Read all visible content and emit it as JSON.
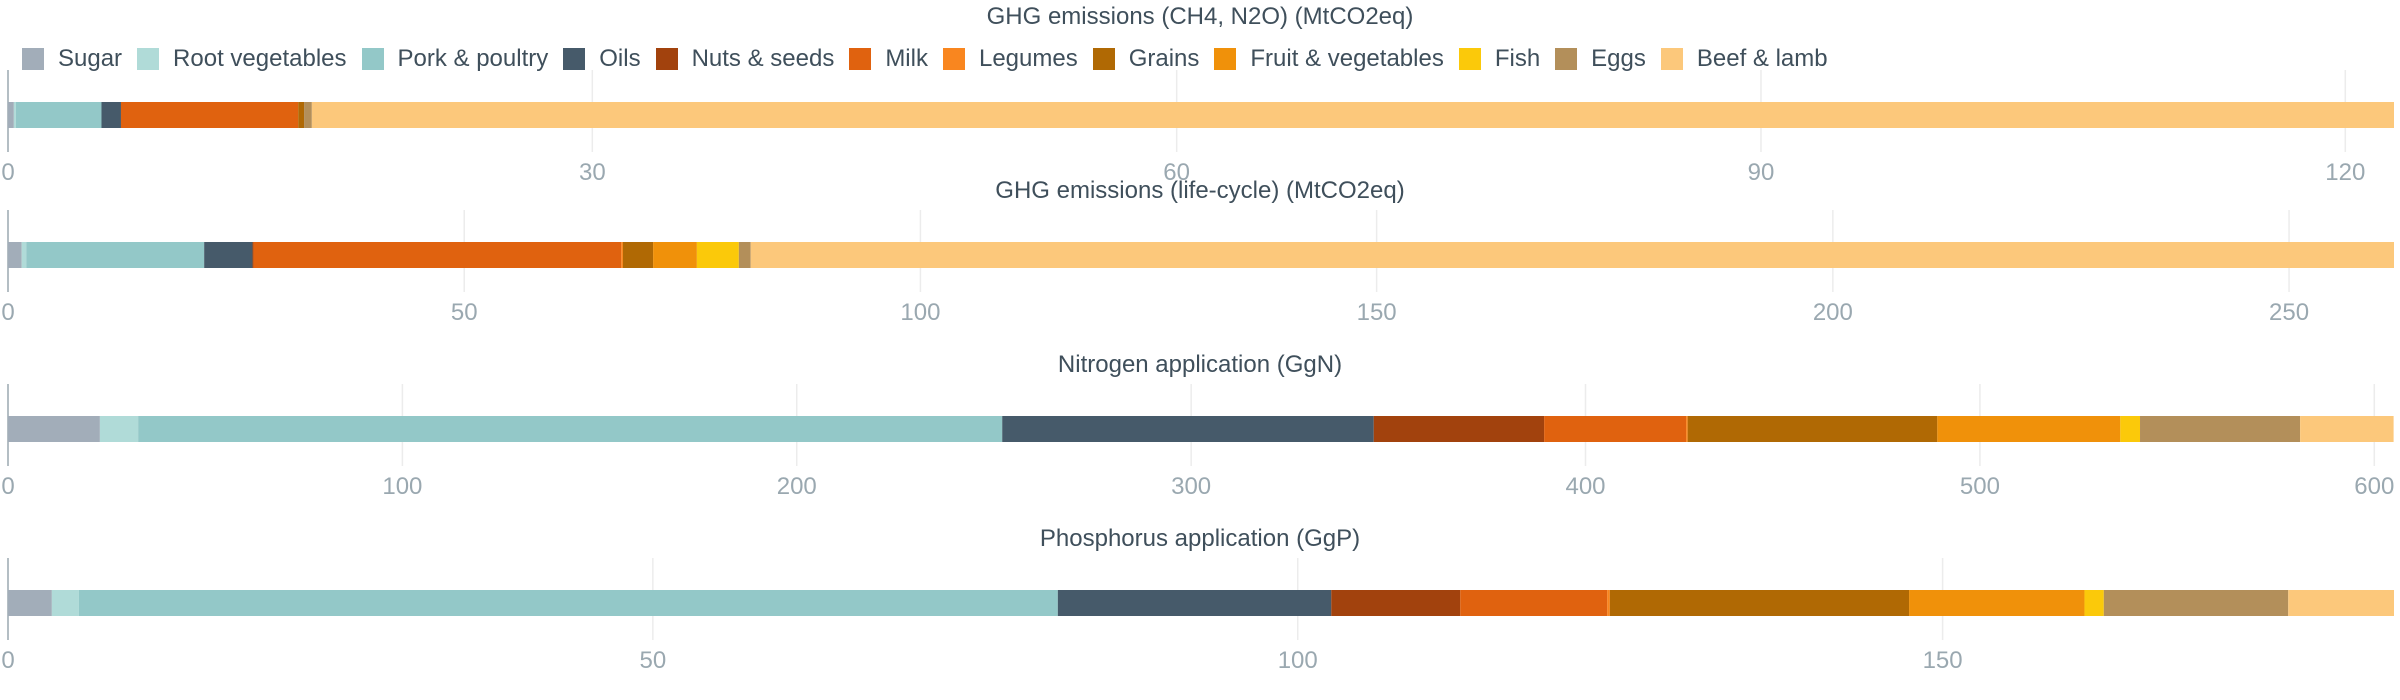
{
  "legend": [
    "Sugar",
    "Root vegetables",
    "Pork & poultry",
    "Oils",
    "Nuts & seeds",
    "Milk",
    "Legumes",
    "Grains",
    "Fruit & vegetables",
    "Fish",
    "Eggs",
    "Beef & lamb"
  ],
  "colors": {
    "Sugar": "#a2adb9",
    "Root vegetables": "#b0dbd8",
    "Pork & poultry": "#93c8c8",
    "Oils": "#465a6a",
    "Nuts & seeds": "#a2420d",
    "Milk": "#e0620f",
    "Legumes": "#f9861f",
    "Grains": "#b06904",
    "Fruit & vegetables": "#f0910a",
    "Fish": "#fbc90a",
    "Eggs": "#b38f5a",
    "Beef & lamb": "#fcc87b"
  },
  "chart_data": [
    {
      "type": "bar",
      "title": "GHG emissions (CH4, N2O) (MtCO2eq)",
      "xlim": [
        0,
        122.5
      ],
      "ticks": [
        0,
        30,
        60,
        90,
        120
      ],
      "series": [
        {
          "name": "Sugar",
          "values": [
            0.3
          ]
        },
        {
          "name": "Root vegetables",
          "values": [
            0.1
          ]
        },
        {
          "name": "Pork & poultry",
          "values": [
            4.4
          ]
        },
        {
          "name": "Oils",
          "values": [
            1.0
          ]
        },
        {
          "name": "Nuts & seeds",
          "values": [
            0.0
          ]
        },
        {
          "name": "Milk",
          "values": [
            9.1
          ]
        },
        {
          "name": "Legumes",
          "values": [
            0.0
          ]
        },
        {
          "name": "Grains",
          "values": [
            0.3
          ]
        },
        {
          "name": "Fruit & vegetables",
          "values": [
            0.0
          ]
        },
        {
          "name": "Fish",
          "values": [
            0.0
          ]
        },
        {
          "name": "Eggs",
          "values": [
            0.4
          ]
        },
        {
          "name": "Beef & lamb",
          "values": [
            106.9
          ]
        }
      ]
    },
    {
      "type": "bar",
      "title": "GHG emissions (life-cycle) (MtCO2eq)",
      "xlim": [
        0,
        261.5
      ],
      "ticks": [
        0,
        50,
        100,
        150,
        200,
        250
      ],
      "series": [
        {
          "name": "Sugar",
          "values": [
            1.5
          ]
        },
        {
          "name": "Root vegetables",
          "values": [
            0.5
          ]
        },
        {
          "name": "Pork & poultry",
          "values": [
            19.5
          ]
        },
        {
          "name": "Oils",
          "values": [
            5.3
          ]
        },
        {
          "name": "Nuts & seeds",
          "values": [
            0.1
          ]
        },
        {
          "name": "Milk",
          "values": [
            40.3
          ]
        },
        {
          "name": "Legumes",
          "values": [
            0.2
          ]
        },
        {
          "name": "Grains",
          "values": [
            3.3
          ]
        },
        {
          "name": "Fruit & vegetables",
          "values": [
            4.8
          ]
        },
        {
          "name": "Fish",
          "values": [
            4.6
          ]
        },
        {
          "name": "Eggs",
          "values": [
            1.3
          ]
        },
        {
          "name": "Beef & lamb",
          "values": [
            180.1
          ]
        }
      ]
    },
    {
      "type": "bar",
      "title": "Nitrogen application (GgN)",
      "xlim": [
        0,
        605
      ],
      "ticks": [
        0,
        100,
        200,
        300,
        400,
        500,
        600
      ],
      "series": [
        {
          "name": "Sugar",
          "values": [
            23.3
          ]
        },
        {
          "name": "Root vegetables",
          "values": [
            9.7
          ]
        },
        {
          "name": "Pork & poultry",
          "values": [
            219.1
          ]
        },
        {
          "name": "Oils",
          "values": [
            94.2
          ]
        },
        {
          "name": "Nuts & seeds",
          "values": [
            43.2
          ]
        },
        {
          "name": "Milk",
          "values": [
            36.0
          ]
        },
        {
          "name": "Legumes",
          "values": [
            0.4
          ]
        },
        {
          "name": "Grains",
          "values": [
            63.3
          ]
        },
        {
          "name": "Fruit & vegetables",
          "values": [
            46.4
          ]
        },
        {
          "name": "Fish",
          "values": [
            5.0
          ]
        },
        {
          "name": "Eggs",
          "values": [
            40.6
          ]
        },
        {
          "name": "Beef & lamb",
          "values": [
            23.7
          ]
        }
      ]
    },
    {
      "type": "bar",
      "title": "Phosphorus application (GgP)",
      "xlim": [
        0,
        185
      ],
      "ticks": [
        0,
        50,
        100,
        150
      ],
      "series": [
        {
          "name": "Sugar",
          "values": [
            3.4
          ]
        },
        {
          "name": "Root vegetables",
          "values": [
            2.1
          ]
        },
        {
          "name": "Pork & poultry",
          "values": [
            75.9
          ]
        },
        {
          "name": "Oils",
          "values": [
            21.2
          ]
        },
        {
          "name": "Nuts & seeds",
          "values": [
            10.0
          ]
        },
        {
          "name": "Milk",
          "values": [
            11.4
          ]
        },
        {
          "name": "Legumes",
          "values": [
            0.2
          ]
        },
        {
          "name": "Grains",
          "values": [
            23.2
          ]
        },
        {
          "name": "Fruit & vegetables",
          "values": [
            13.6
          ]
        },
        {
          "name": "Fish",
          "values": [
            1.5
          ]
        },
        {
          "name": "Eggs",
          "values": [
            14.3
          ]
        },
        {
          "name": "Beef & lamb",
          "values": [
            8.2
          ]
        }
      ]
    }
  ]
}
